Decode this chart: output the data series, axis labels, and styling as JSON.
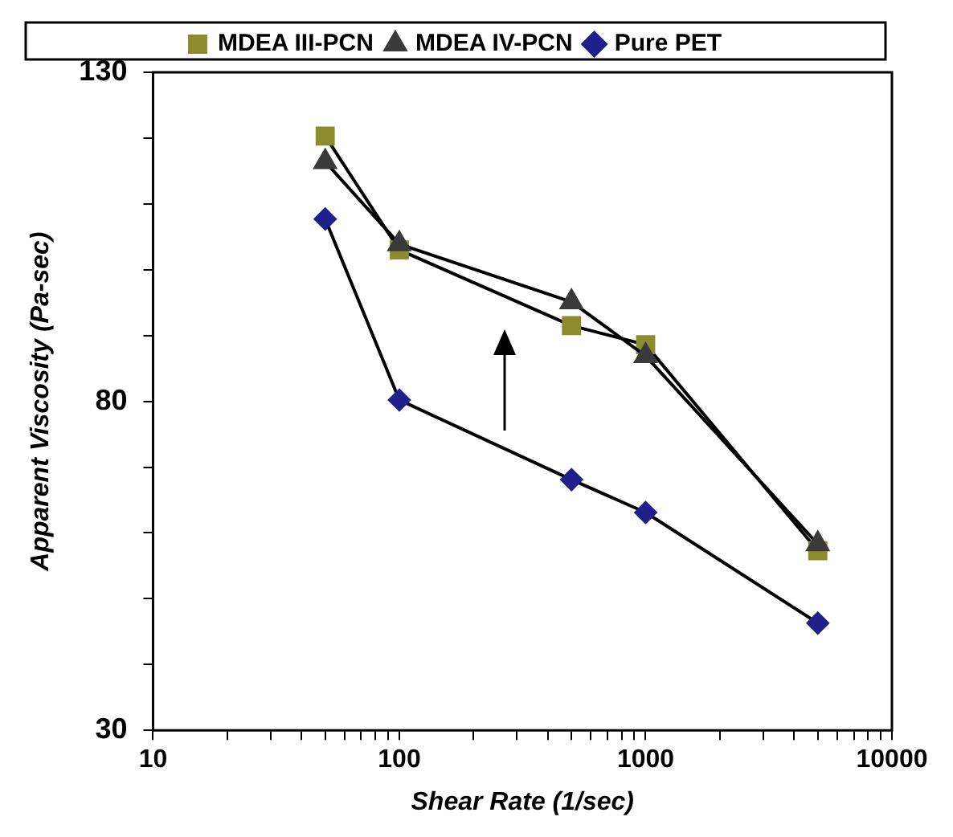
{
  "chart_data": {
    "type": "line",
    "xlabel": "Shear Rate (1/sec)",
    "ylabel": "Apparent Viscosity (Pa-sec)",
    "x": [
      50,
      100,
      500,
      1000,
      5000
    ],
    "series": [
      {
        "name": "MDEA III-PCN",
        "color": "#8c8c2e",
        "marker": "square",
        "values": [
          120.3,
          103,
          91.5,
          88.6,
          57.3
        ]
      },
      {
        "name": "MDEA IV-PCN",
        "color": "#3a3a3a",
        "marker": "triangle",
        "values": [
          116.4,
          103.9,
          95.1,
          86.9,
          58.3
        ]
      },
      {
        "name": "Pure PET",
        "color": "#20208c",
        "marker": "diamond",
        "values": [
          107.7,
          80.2,
          68.1,
          63.1,
          46.3
        ]
      }
    ],
    "log": "x",
    "xlim": [
      10,
      10000
    ],
    "xticks": [
      10,
      {
        "value": 20,
        "label": null
      },
      {
        "value": 30,
        "label": null
      },
      {
        "value": 40,
        "label": null
      },
      {
        "value": 50,
        "label": null
      },
      {
        "value": 60,
        "label": null
      },
      {
        "value": 70,
        "label": null
      },
      {
        "value": 80,
        "label": null
      },
      {
        "value": 90,
        "label": null
      },
      100,
      {
        "value": 200,
        "label": null
      },
      {
        "value": 300,
        "label": null
      },
      {
        "value": 400,
        "label": null
      },
      {
        "value": 500,
        "label": null
      },
      {
        "value": 600,
        "label": null
      },
      {
        "value": 700,
        "label": null
      },
      {
        "value": 800,
        "label": null
      },
      {
        "value": 900,
        "label": null
      },
      1000,
      {
        "value": 2000,
        "label": null
      },
      {
        "value": 3000,
        "label": null
      },
      {
        "value": 4000,
        "label": null
      },
      {
        "value": 5000,
        "label": null
      },
      {
        "value": 6000,
        "label": null
      },
      {
        "value": 7000,
        "label": null
      },
      {
        "value": 8000,
        "label": null
      },
      {
        "value": 9000,
        "label": null
      },
      10000
    ],
    "ylim": [
      30,
      130
    ],
    "yticks": [
      30,
      {
        "value": 40,
        "label": null
      },
      {
        "value": 50,
        "label": null
      },
      {
        "value": 60,
        "label": null
      },
      {
        "value": 70,
        "label": null
      },
      80,
      {
        "value": 90,
        "label": null
      },
      {
        "value": 100,
        "label": null
      },
      {
        "value": 110,
        "label": null
      },
      {
        "value": 120,
        "label": null
      },
      130
    ],
    "grid": false,
    "legend": "top",
    "line_style": "solid"
  }
}
